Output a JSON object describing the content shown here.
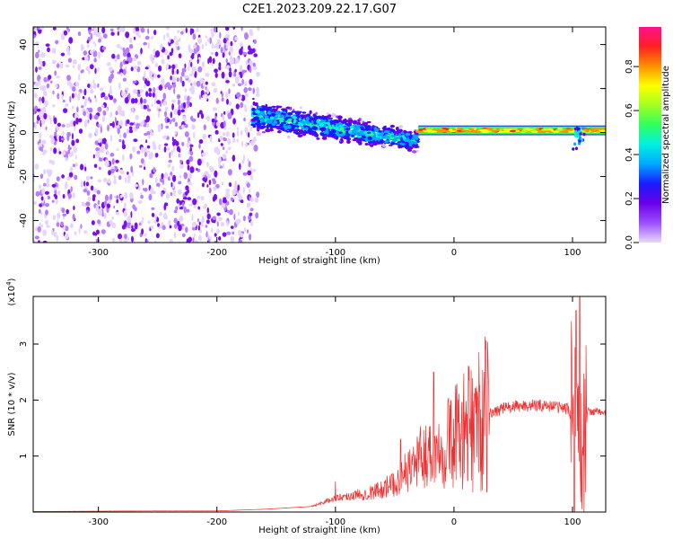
{
  "title": "C2E1.2023.209.22.17.G07",
  "chart_data": [
    {
      "type": "heatmap",
      "xlabel": "Height of straight line (km)",
      "ylabel": "Frequency (Hz)",
      "xlim": [
        -355,
        128
      ],
      "ylim": [
        -50,
        48
      ],
      "xticks": [
        -300,
        -200,
        -100,
        0,
        100
      ],
      "yticks": [
        -40,
        -20,
        0,
        20,
        40
      ],
      "colorbar": {
        "label": "Normalized spectral amplitude",
        "range": [
          0,
          0.98
        ],
        "ticks": [
          "0.0",
          "0.2",
          "0.4",
          "0.6",
          "0.8"
        ],
        "colors": [
          "#e8d8ff",
          "#9c50ff",
          "#6a00e8",
          "#1a1aff",
          "#00a8ff",
          "#00f0e0",
          "#30ff60",
          "#a0ff20",
          "#ffff00",
          "#ff9000",
          "#ff2020",
          "#ff1090"
        ]
      },
      "regions": [
        {
          "name": "noise",
          "x": [
            -355,
            -165
          ],
          "freq_range": [
            -50,
            48
          ],
          "amplitude": 0.1
        },
        {
          "name": "signal-spread",
          "x": [
            -170,
            -30
          ],
          "center_freq": [
            8,
            -4
          ],
          "width_hz": [
            18,
            12
          ],
          "amplitude": 0.35
        },
        {
          "name": "signal-narrow",
          "x": [
            -30,
            128
          ],
          "center_freq": 1,
          "width_hz": 3,
          "amplitude": 0.85
        }
      ]
    },
    {
      "type": "line",
      "xlabel": "Height of straight line (km)",
      "ylabel": "SNR (10 * v/v)",
      "scale_label": "(x10",
      "scale_exp": "4",
      "scale_close": ")",
      "xlim": [
        -355,
        128
      ],
      "ylim": [
        0,
        3.85
      ],
      "xticks": [
        -300,
        -200,
        -100,
        0,
        100
      ],
      "yticks": [
        1,
        2,
        3
      ],
      "line_color": "#ee3030",
      "envelope": [
        {
          "x": -355,
          "y": 0.01
        },
        {
          "x": -250,
          "y": 0.02
        },
        {
          "x": -200,
          "y": 0.02
        },
        {
          "x": -160,
          "y": 0.05
        },
        {
          "x": -120,
          "y": 0.1
        },
        {
          "x": -100,
          "y": 0.25
        },
        {
          "x": -70,
          "y": 0.35
        },
        {
          "x": -50,
          "y": 0.5
        },
        {
          "x": -30,
          "y": 0.95
        },
        {
          "x": -10,
          "y": 1.2
        },
        {
          "x": 10,
          "y": 1.45
        },
        {
          "x": 25,
          "y": 1.7
        },
        {
          "x": 40,
          "y": 1.85
        },
        {
          "x": 60,
          "y": 1.9
        },
        {
          "x": 80,
          "y": 1.9
        },
        {
          "x": 95,
          "y": 1.85
        },
        {
          "x": 103,
          "y": 1.6
        },
        {
          "x": 108,
          "y": 1.0
        },
        {
          "x": 113,
          "y": 1.8
        },
        {
          "x": 128,
          "y": 1.78
        }
      ],
      "peaks": [
        {
          "x": -100,
          "y": 0.55
        },
        {
          "x": -45,
          "y": 1.3
        },
        {
          "x": -17,
          "y": 2.5
        },
        {
          "x": -5,
          "y": 2.0
        },
        {
          "x": 103,
          "y": 3.6
        },
        {
          "x": 106,
          "y": 3.85
        },
        {
          "x": 108,
          "y": 0.05
        }
      ]
    }
  ]
}
